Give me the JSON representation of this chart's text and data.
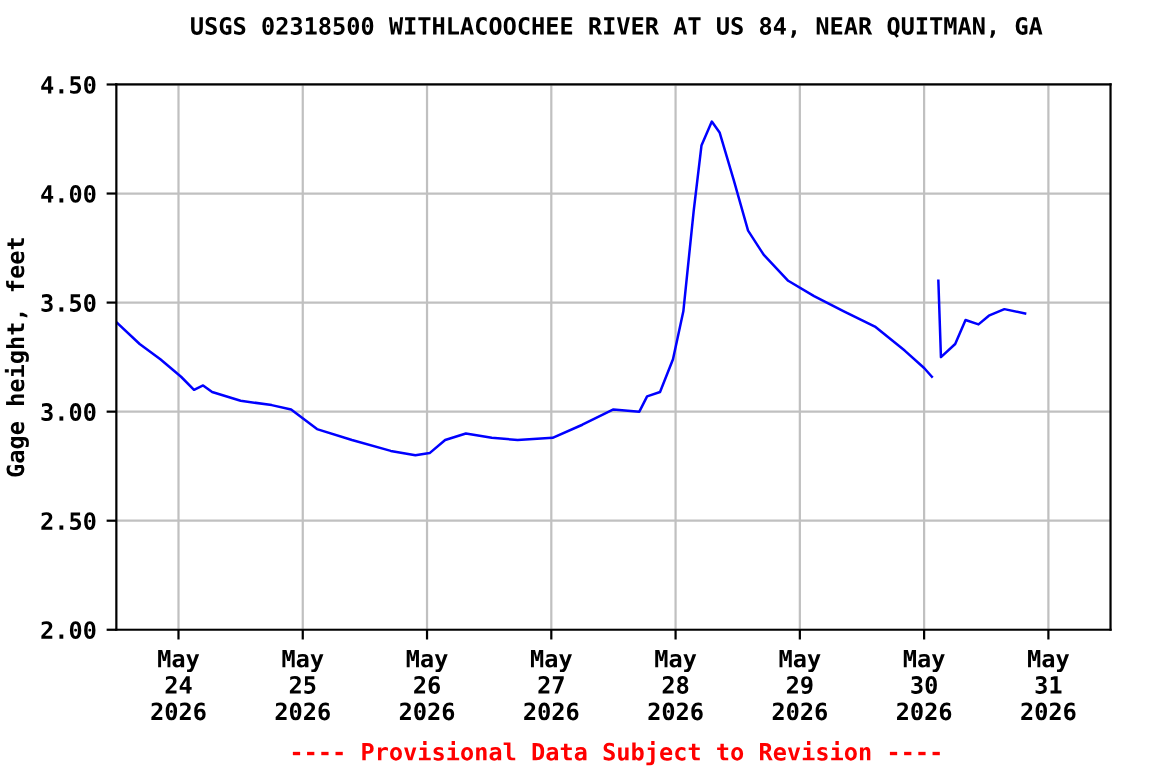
{
  "chart_data": {
    "type": "line",
    "title": "USGS 02318500 WITHLACOOCHEE RIVER AT US 84, NEAR QUITMAN, GA",
    "ylabel": "Gage height, feet",
    "annotations": [
      "---- Provisional Data Subject to Revision ----"
    ],
    "x": [
      "2026-05-23T12:00",
      "2026-05-23T16:30",
      "2026-05-23T20:30",
      "2026-05-24T00:30",
      "2026-05-24T03:00",
      "2026-05-24T04:45",
      "2026-05-24T06:30",
      "2026-05-24T12:00",
      "2026-05-24T18:00",
      "2026-05-24T21:45",
      "2026-05-25T02:45",
      "2026-05-25T09:30",
      "2026-05-25T17:00",
      "2026-05-25T21:45",
      "2026-05-26T00:30",
      "2026-05-26T03:30",
      "2026-05-26T07:30",
      "2026-05-26T12:30",
      "2026-05-26T17:30",
      "2026-05-27T00:15",
      "2026-05-27T06:00",
      "2026-05-27T12:00",
      "2026-05-27T17:00",
      "2026-05-27T18:30",
      "2026-05-27T21:00",
      "2026-05-27T23:30",
      "2026-05-28T01:30",
      "2026-05-28T03:30",
      "2026-05-28T05:00",
      "2026-05-28T07:00",
      "2026-05-28T08:30",
      "2026-05-28T11:15",
      "2026-05-28T14:00",
      "2026-05-28T17:00",
      "2026-05-28T21:45",
      "2026-05-29T02:45",
      "2026-05-29T08:30",
      "2026-05-29T14:30",
      "2026-05-29T20:15",
      "2026-05-30T00:00",
      "2026-05-30T01:30",
      "2026-05-30T02:00",
      "2026-05-30T02:45",
      "2026-05-30T03:15",
      "2026-05-30T06:00",
      "2026-05-30T08:00",
      "2026-05-30T10:30",
      "2026-05-30T12:30",
      "2026-05-30T15:30",
      "2026-05-30T19:30"
    ],
    "series": [
      {
        "color": "#0000ff",
        "values": [
          3.41,
          3.31,
          3.24,
          3.16,
          3.1,
          3.12,
          3.09,
          3.05,
          3.03,
          3.01,
          2.92,
          2.87,
          2.82,
          2.8,
          2.81,
          2.87,
          2.9,
          2.88,
          2.87,
          2.88,
          2.94,
          3.01,
          3.0,
          3.07,
          3.09,
          3.24,
          3.46,
          3.92,
          4.22,
          4.33,
          4.28,
          4.06,
          3.83,
          3.72,
          3.6,
          3.53,
          3.46,
          3.39,
          3.28,
          3.2,
          3.16,
          null,
          3.6,
          3.25,
          3.31,
          3.42,
          3.4,
          3.44,
          3.47,
          3.45
        ]
      }
    ],
    "xlim": [
      "2026-05-23T12:00",
      "2026-05-31T12:00"
    ],
    "xticks": [
      {
        "value": "2026-05-24",
        "label": "May\n24\n2026"
      },
      {
        "value": "2026-05-25",
        "label": "May\n25\n2026"
      },
      {
        "value": "2026-05-26",
        "label": "May\n26\n2026"
      },
      {
        "value": "2026-05-27",
        "label": "May\n27\n2026"
      },
      {
        "value": "2026-05-28",
        "label": "May\n28\n2026"
      },
      {
        "value": "2026-05-29",
        "label": "May\n29\n2026"
      },
      {
        "value": "2026-05-30",
        "label": "May\n30\n2026"
      },
      {
        "value": "2026-05-31",
        "label": "May\n31\n2026"
      }
    ],
    "ylim": [
      2.0,
      4.5
    ],
    "yticks": [
      {
        "value": 2.0,
        "label": "2.00"
      },
      {
        "value": 2.5,
        "label": "2.50"
      },
      {
        "value": 3.0,
        "label": "3.00"
      },
      {
        "value": 3.5,
        "label": "3.50"
      },
      {
        "value": 4.0,
        "label": "4.00"
      },
      {
        "value": 4.5,
        "label": "4.50"
      }
    ],
    "grid": true
  }
}
